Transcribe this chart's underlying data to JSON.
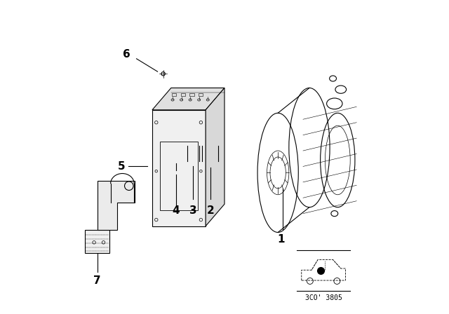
{
  "background_color": "#ffffff",
  "line_color": "#000000",
  "label_fontsize": 11,
  "diagram_code": "3CO' 3805",
  "diagram_code_fontsize": 7,
  "fig_width": 6.4,
  "fig_height": 4.48
}
